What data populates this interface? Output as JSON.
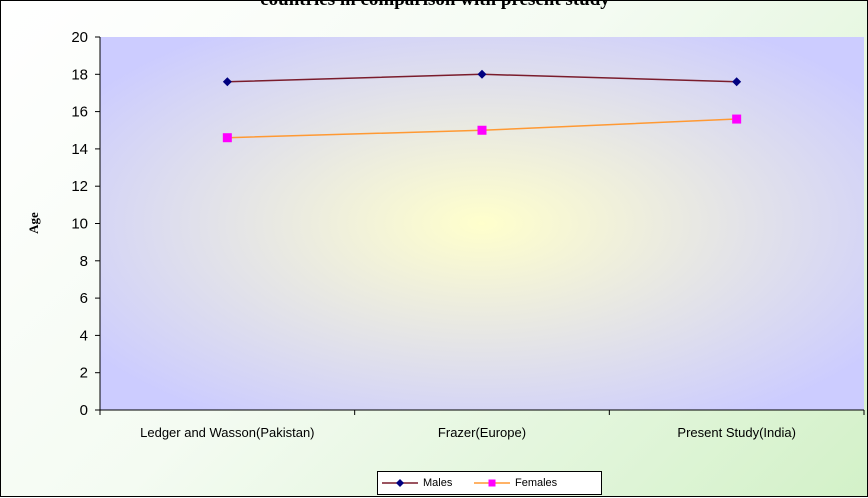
{
  "chart_data": {
    "type": "line",
    "title": "countries in comparison with present study",
    "xlabel": "",
    "ylabel": "Age",
    "categories": [
      "Ledger and Wasson(Pakistan)",
      "Frazer(Europe)",
      "Present Study(India)"
    ],
    "ylim": [
      0,
      20
    ],
    "yticks": [
      "0",
      "2",
      "4",
      "6",
      "8",
      "10",
      "12",
      "14",
      "16",
      "18",
      "20"
    ],
    "grid": false,
    "legend_position": "bottom",
    "series": [
      {
        "name": "Males",
        "values": [
          17.6,
          18.0,
          17.6
        ],
        "color": "#7a1c2c",
        "marker": "diamond",
        "marker_color": "#000080"
      },
      {
        "name": "Females",
        "values": [
          14.6,
          15.0,
          15.6
        ],
        "color": "#ff9933",
        "marker": "square",
        "marker_color": "#ff00ff"
      }
    ]
  },
  "colors": {
    "plot_center": "#ffffcc",
    "plot_edge": "#ccccff",
    "frame_gradient_end": "#d3f1c8"
  }
}
